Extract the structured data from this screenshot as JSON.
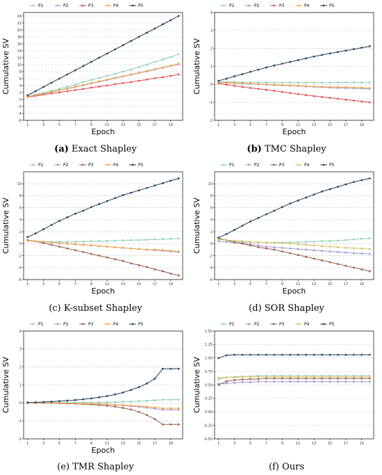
{
  "colors": {
    "P1": "#8ecfb8",
    "P2": "#a49ad6",
    "P3": "#e8484a",
    "P4": "#f2a64a",
    "P5": "#1f3f5c",
    "P3_alt": "#9a5b4a",
    "P4_alt": "#d8c36a"
  },
  "chart_data": [
    {
      "type": "line",
      "panel_label": "(a)",
      "caption": "Exact Shapley",
      "xlabel": "Epoch",
      "ylabel": "Cumulative SV",
      "x": [
        1,
        2,
        3,
        4,
        5,
        6,
        7,
        8,
        9,
        10,
        11,
        12,
        13,
        14,
        15,
        16,
        17,
        18,
        19,
        20
      ],
      "xticks": [
        1,
        3,
        5,
        7,
        9,
        11,
        13,
        15,
        17,
        19
      ],
      "ylim": [
        -6,
        25
      ],
      "yticks": [
        -6,
        -4,
        -2,
        0,
        2,
        4,
        6,
        8,
        10,
        12,
        14,
        16,
        18,
        20,
        22,
        24
      ],
      "grid": true,
      "legend": [
        "P1",
        "P2",
        "P3",
        "P4",
        "P5"
      ],
      "series": [
        {
          "name": "P1",
          "values": [
            0.9,
            1.4,
            1.9,
            2.5,
            3.1,
            3.7,
            4.3,
            5.0,
            5.6,
            6.2,
            6.8,
            7.4,
            8.0,
            8.6,
            9.3,
            10.0,
            10.8,
            11.5,
            12.2,
            13.0
          ]
        },
        {
          "name": "P2",
          "values": [
            0.8,
            1.2,
            1.6,
            2.1,
            2.6,
            3.1,
            3.6,
            4.1,
            4.6,
            5.1,
            5.6,
            6.1,
            6.6,
            7.1,
            7.6,
            8.1,
            8.6,
            9.1,
            9.6,
            10.1
          ]
        },
        {
          "name": "P3",
          "values": [
            0.7,
            1.0,
            1.4,
            1.7,
            2.0,
            2.4,
            2.7,
            3.0,
            3.4,
            3.7,
            4.0,
            4.4,
            4.7,
            5.0,
            5.4,
            5.7,
            6.1,
            6.4,
            6.8,
            7.2
          ]
        },
        {
          "name": "P4",
          "values": [
            0.8,
            1.2,
            1.7,
            2.2,
            2.7,
            3.2,
            3.7,
            4.2,
            4.7,
            5.2,
            5.7,
            6.2,
            6.7,
            7.2,
            7.7,
            8.2,
            8.7,
            9.2,
            9.7,
            10.3
          ]
        },
        {
          "name": "P5",
          "values": [
            1.2,
            2.4,
            3.6,
            4.8,
            6.0,
            7.2,
            8.4,
            9.6,
            10.8,
            12.0,
            13.2,
            14.4,
            15.6,
            16.8,
            18.0,
            19.2,
            20.4,
            21.6,
            22.8,
            24.0
          ]
        }
      ]
    },
    {
      "type": "line",
      "panel_label": "(b)",
      "caption": "TMC Shapley",
      "xlabel": "Epoch",
      "ylabel": "Cumulative SV",
      "x": [
        1,
        2,
        3,
        4,
        5,
        6,
        7,
        8,
        9,
        10,
        11,
        12,
        13,
        14,
        15,
        16,
        17,
        18,
        19,
        20
      ],
      "xticks": [
        1,
        3,
        5,
        7,
        9,
        11,
        13,
        15,
        17,
        19
      ],
      "ylim": [
        -2,
        4
      ],
      "yticks": [
        -2,
        -1,
        0,
        1,
        2,
        3,
        4
      ],
      "grid": true,
      "legend": [
        "P1",
        "P2",
        "P3",
        "P4",
        "P5"
      ],
      "series": [
        {
          "name": "P1",
          "values": [
            0.15,
            0.14,
            0.13,
            0.12,
            0.12,
            0.11,
            0.11,
            0.1,
            0.1,
            0.1,
            0.1,
            0.1,
            0.1,
            0.1,
            0.1,
            0.11,
            0.11,
            0.11,
            0.11,
            0.12
          ]
        },
        {
          "name": "P2",
          "values": [
            0.1,
            0.08,
            0.06,
            0.04,
            0.02,
            0.0,
            -0.02,
            -0.04,
            -0.06,
            -0.08,
            -0.1,
            -0.12,
            -0.14,
            -0.16,
            -0.18,
            -0.2,
            -0.21,
            -0.22,
            -0.23,
            -0.25
          ]
        },
        {
          "name": "P3",
          "values": [
            0.05,
            -0.02,
            -0.08,
            -0.14,
            -0.2,
            -0.25,
            -0.3,
            -0.36,
            -0.42,
            -0.48,
            -0.54,
            -0.6,
            -0.65,
            -0.7,
            -0.75,
            -0.8,
            -0.85,
            -0.9,
            -0.95,
            -1.0
          ]
        },
        {
          "name": "P4",
          "values": [
            0.12,
            0.1,
            0.08,
            0.06,
            0.04,
            0.02,
            0.0,
            -0.02,
            -0.04,
            -0.06,
            -0.08,
            -0.1,
            -0.12,
            -0.13,
            -0.14,
            -0.15,
            -0.16,
            -0.17,
            -0.18,
            -0.2
          ]
        },
        {
          "name": "P5",
          "values": [
            0.2,
            0.32,
            0.45,
            0.57,
            0.7,
            0.82,
            0.94,
            1.05,
            1.15,
            1.25,
            1.35,
            1.45,
            1.55,
            1.64,
            1.72,
            1.8,
            1.88,
            1.96,
            2.04,
            2.12
          ]
        }
      ]
    },
    {
      "type": "line",
      "panel_label": "(c)",
      "caption": "K-subset Shapley",
      "xlabel": "Epoch",
      "ylabel": "Cumulative SV",
      "x": [
        1,
        2,
        3,
        4,
        5,
        6,
        7,
        8,
        9,
        10,
        11,
        12,
        13,
        14,
        15,
        16,
        17,
        18,
        19,
        20
      ],
      "xticks": [
        1,
        3,
        5,
        7,
        9,
        11,
        13,
        15,
        17,
        19
      ],
      "ylim": [
        -6,
        12
      ],
      "yticks": [
        -6,
        -4,
        -2,
        0,
        2,
        4,
        6,
        8,
        10
      ],
      "grid": true,
      "legend": [
        "P1",
        "P2",
        "P3",
        "P4",
        "P5"
      ],
      "series": [
        {
          "name": "P1",
          "values": [
            0.5,
            0.4,
            0.35,
            0.3,
            0.3,
            0.3,
            0.3,
            0.35,
            0.4,
            0.4,
            0.45,
            0.5,
            0.55,
            0.6,
            0.6,
            0.65,
            0.7,
            0.75,
            0.8,
            0.85
          ]
        },
        {
          "name": "P2",
          "values": [
            0.5,
            0.4,
            0.3,
            0.2,
            0.1,
            0.0,
            -0.1,
            -0.2,
            -0.3,
            -0.4,
            -0.5,
            -0.6,
            -0.7,
            -0.8,
            -0.9,
            -1.0,
            -1.1,
            -1.2,
            -1.3,
            -1.4
          ]
        },
        {
          "name": "P3",
          "values": [
            0.6,
            0.4,
            0.1,
            -0.2,
            -0.5,
            -0.8,
            -1.1,
            -1.4,
            -1.7,
            -2.0,
            -2.3,
            -2.6,
            -2.9,
            -3.3,
            -3.6,
            -3.9,
            -4.3,
            -4.6,
            -5.0,
            -5.3
          ]
        },
        {
          "name": "P4",
          "values": [
            0.5,
            0.4,
            0.3,
            0.2,
            0.1,
            0.0,
            -0.1,
            -0.2,
            -0.3,
            -0.4,
            -0.5,
            -0.6,
            -0.7,
            -0.8,
            -0.9,
            -1.0,
            -1.0,
            -1.1,
            -1.2,
            -1.3
          ]
        },
        {
          "name": "P5",
          "values": [
            1.1,
            1.7,
            2.4,
            3.1,
            3.8,
            4.4,
            5.0,
            5.5,
            6.1,
            6.6,
            7.1,
            7.6,
            8.1,
            8.5,
            8.9,
            9.3,
            9.7,
            10.1,
            10.5,
            10.9
          ]
        }
      ]
    },
    {
      "type": "line",
      "panel_label": "(d)",
      "caption": "SOR Shapley",
      "xlabel": "Epoch",
      "ylabel": "Cumulative SV",
      "x": [
        1,
        2,
        3,
        4,
        5,
        6,
        7,
        8,
        9,
        10,
        11,
        12,
        13,
        14,
        15,
        16,
        17,
        18,
        19,
        20
      ],
      "xticks": [
        1,
        3,
        5,
        7,
        9,
        11,
        13,
        15,
        17,
        19
      ],
      "ylim": [
        -6,
        12
      ],
      "yticks": [
        -6,
        -4,
        -2,
        0,
        2,
        4,
        6,
        8,
        10
      ],
      "grid": true,
      "legend": [
        "P1",
        "P2",
        "P3",
        "P4",
        "P5"
      ],
      "series": [
        {
          "name": "P1",
          "values": [
            0.8,
            0.6,
            0.4,
            0.3,
            0.25,
            0.2,
            0.2,
            0.2,
            0.2,
            0.2,
            0.25,
            0.3,
            0.35,
            0.4,
            0.45,
            0.5,
            0.6,
            0.7,
            0.8,
            0.9
          ]
        },
        {
          "name": "P2",
          "values": [
            0.4,
            0.3,
            0.2,
            0.1,
            -0.1,
            -0.3,
            -0.5,
            -0.6,
            -0.7,
            -0.8,
            -0.9,
            -1.0,
            -1.1,
            -1.2,
            -1.3,
            -1.4,
            -1.5,
            -1.6,
            -1.65,
            -1.7
          ]
        },
        {
          "name": "P3",
          "values": [
            0.9,
            0.6,
            0.2,
            0.0,
            -0.3,
            -0.6,
            -0.8,
            -1.0,
            -1.3,
            -1.6,
            -1.9,
            -2.2,
            -2.5,
            -2.8,
            -3.1,
            -3.4,
            -3.7,
            -4.0,
            -4.3,
            -4.6
          ]
        },
        {
          "name": "P4",
          "values": [
            0.7,
            0.6,
            0.5,
            0.4,
            0.3,
            0.25,
            0.2,
            0.15,
            0.1,
            0.0,
            -0.1,
            -0.2,
            -0.3,
            -0.4,
            -0.5,
            -0.6,
            -0.7,
            -0.75,
            -0.8,
            -0.9
          ]
        },
        {
          "name": "P5",
          "values": [
            1.0,
            1.6,
            2.3,
            3.0,
            3.7,
            4.3,
            4.9,
            5.5,
            6.1,
            6.7,
            7.2,
            7.7,
            8.2,
            8.7,
            9.1,
            9.5,
            9.9,
            10.3,
            10.6,
            10.9
          ]
        }
      ]
    },
    {
      "type": "line",
      "panel_label": "(e)",
      "caption": "TMR Shapley",
      "xlabel": "Epoch",
      "ylabel": "Cumulative SV",
      "x": [
        1,
        2,
        3,
        4,
        5,
        6,
        7,
        8,
        9,
        10,
        11,
        12,
        13,
        14,
        15,
        16,
        17,
        18,
        19,
        20
      ],
      "xticks": [
        1,
        3,
        5,
        7,
        9,
        11,
        13,
        15,
        17,
        19
      ],
      "ylim": [
        -2,
        4
      ],
      "yticks": [
        -2,
        -1,
        0,
        1,
        2,
        3,
        4
      ],
      "grid": true,
      "legend": [
        "P1",
        "P2",
        "P3",
        "P4",
        "P5"
      ],
      "series": [
        {
          "name": "P1",
          "values": [
            0.02,
            0.02,
            0.02,
            0.02,
            0.02,
            0.02,
            0.02,
            0.02,
            0.02,
            0.03,
            0.04,
            0.05,
            0.06,
            0.08,
            0.1,
            0.12,
            0.15,
            0.18,
            0.18,
            0.18
          ]
        },
        {
          "name": "P2",
          "values": [
            0.01,
            0.0,
            0.0,
            -0.01,
            -0.02,
            -0.03,
            -0.04,
            -0.05,
            -0.06,
            -0.07,
            -0.09,
            -0.11,
            -0.14,
            -0.18,
            -0.22,
            -0.27,
            -0.32,
            -0.38,
            -0.38,
            -0.38
          ]
        },
        {
          "name": "P3",
          "values": [
            0.0,
            0.0,
            -0.01,
            -0.02,
            -0.03,
            -0.04,
            -0.05,
            -0.07,
            -0.09,
            -0.12,
            -0.16,
            -0.21,
            -0.28,
            -0.37,
            -0.5,
            -0.68,
            -0.9,
            -1.2,
            -1.2,
            -1.2
          ]
        },
        {
          "name": "P4",
          "values": [
            0.01,
            0.0,
            0.0,
            -0.01,
            -0.01,
            -0.02,
            -0.03,
            -0.04,
            -0.05,
            -0.06,
            -0.08,
            -0.1,
            -0.12,
            -0.15,
            -0.18,
            -0.21,
            -0.25,
            -0.3,
            -0.3,
            -0.3
          ]
        },
        {
          "name": "P5",
          "values": [
            0.02,
            0.03,
            0.05,
            0.07,
            0.1,
            0.13,
            0.16,
            0.2,
            0.25,
            0.31,
            0.38,
            0.47,
            0.58,
            0.72,
            0.88,
            1.08,
            1.35,
            1.9,
            1.9,
            1.9
          ]
        }
      ]
    },
    {
      "type": "line",
      "panel_label": "(f)",
      "caption": "Ours",
      "xlabel": "",
      "ylabel": "Cumulative SV",
      "x": [
        1,
        2,
        3,
        4,
        5,
        6,
        7,
        8,
        9,
        10,
        11,
        12,
        13,
        14,
        15,
        16,
        17,
        18,
        19,
        20
      ],
      "xticks": [
        1,
        3,
        5,
        7,
        9,
        11,
        13,
        15,
        17,
        19
      ],
      "ylim": [
        -0.5,
        1.5
      ],
      "yticks": [
        -0.5,
        -0.25,
        0.0,
        0.25,
        0.5,
        0.75,
        1.0,
        1.25,
        1.5
      ],
      "ytick_labels": [
        "-0.50",
        "-0.25",
        "0.00",
        "0.25",
        "0.50",
        "0.75",
        "1.00",
        "1.25",
        "1.50"
      ],
      "grid": true,
      "legend": [
        "P1",
        "P2",
        "P3",
        "P4",
        "P5"
      ],
      "series": [
        {
          "name": "P1",
          "values": [
            0.61,
            0.64,
            0.65,
            0.66,
            0.66,
            0.67,
            0.67,
            0.67,
            0.67,
            0.67,
            0.67,
            0.67,
            0.67,
            0.67,
            0.67,
            0.67,
            0.67,
            0.67,
            0.67,
            0.67
          ]
        },
        {
          "name": "P2",
          "values": [
            0.52,
            0.53,
            0.54,
            0.55,
            0.55,
            0.56,
            0.56,
            0.56,
            0.56,
            0.56,
            0.56,
            0.56,
            0.56,
            0.56,
            0.56,
            0.56,
            0.56,
            0.56,
            0.56,
            0.56
          ]
        },
        {
          "name": "P3",
          "values": [
            0.5,
            0.57,
            0.59,
            0.6,
            0.61,
            0.61,
            0.62,
            0.62,
            0.62,
            0.62,
            0.62,
            0.62,
            0.62,
            0.62,
            0.62,
            0.62,
            0.62,
            0.62,
            0.62,
            0.62
          ]
        },
        {
          "name": "P4",
          "values": [
            0.63,
            0.64,
            0.64,
            0.65,
            0.65,
            0.65,
            0.65,
            0.65,
            0.65,
            0.65,
            0.65,
            0.65,
            0.65,
            0.65,
            0.65,
            0.65,
            0.65,
            0.65,
            0.65,
            0.65
          ]
        },
        {
          "name": "P5",
          "values": [
            1.0,
            1.05,
            1.06,
            1.06,
            1.06,
            1.06,
            1.06,
            1.06,
            1.06,
            1.06,
            1.06,
            1.06,
            1.06,
            1.06,
            1.06,
            1.06,
            1.06,
            1.06,
            1.06,
            1.06
          ]
        }
      ]
    }
  ]
}
